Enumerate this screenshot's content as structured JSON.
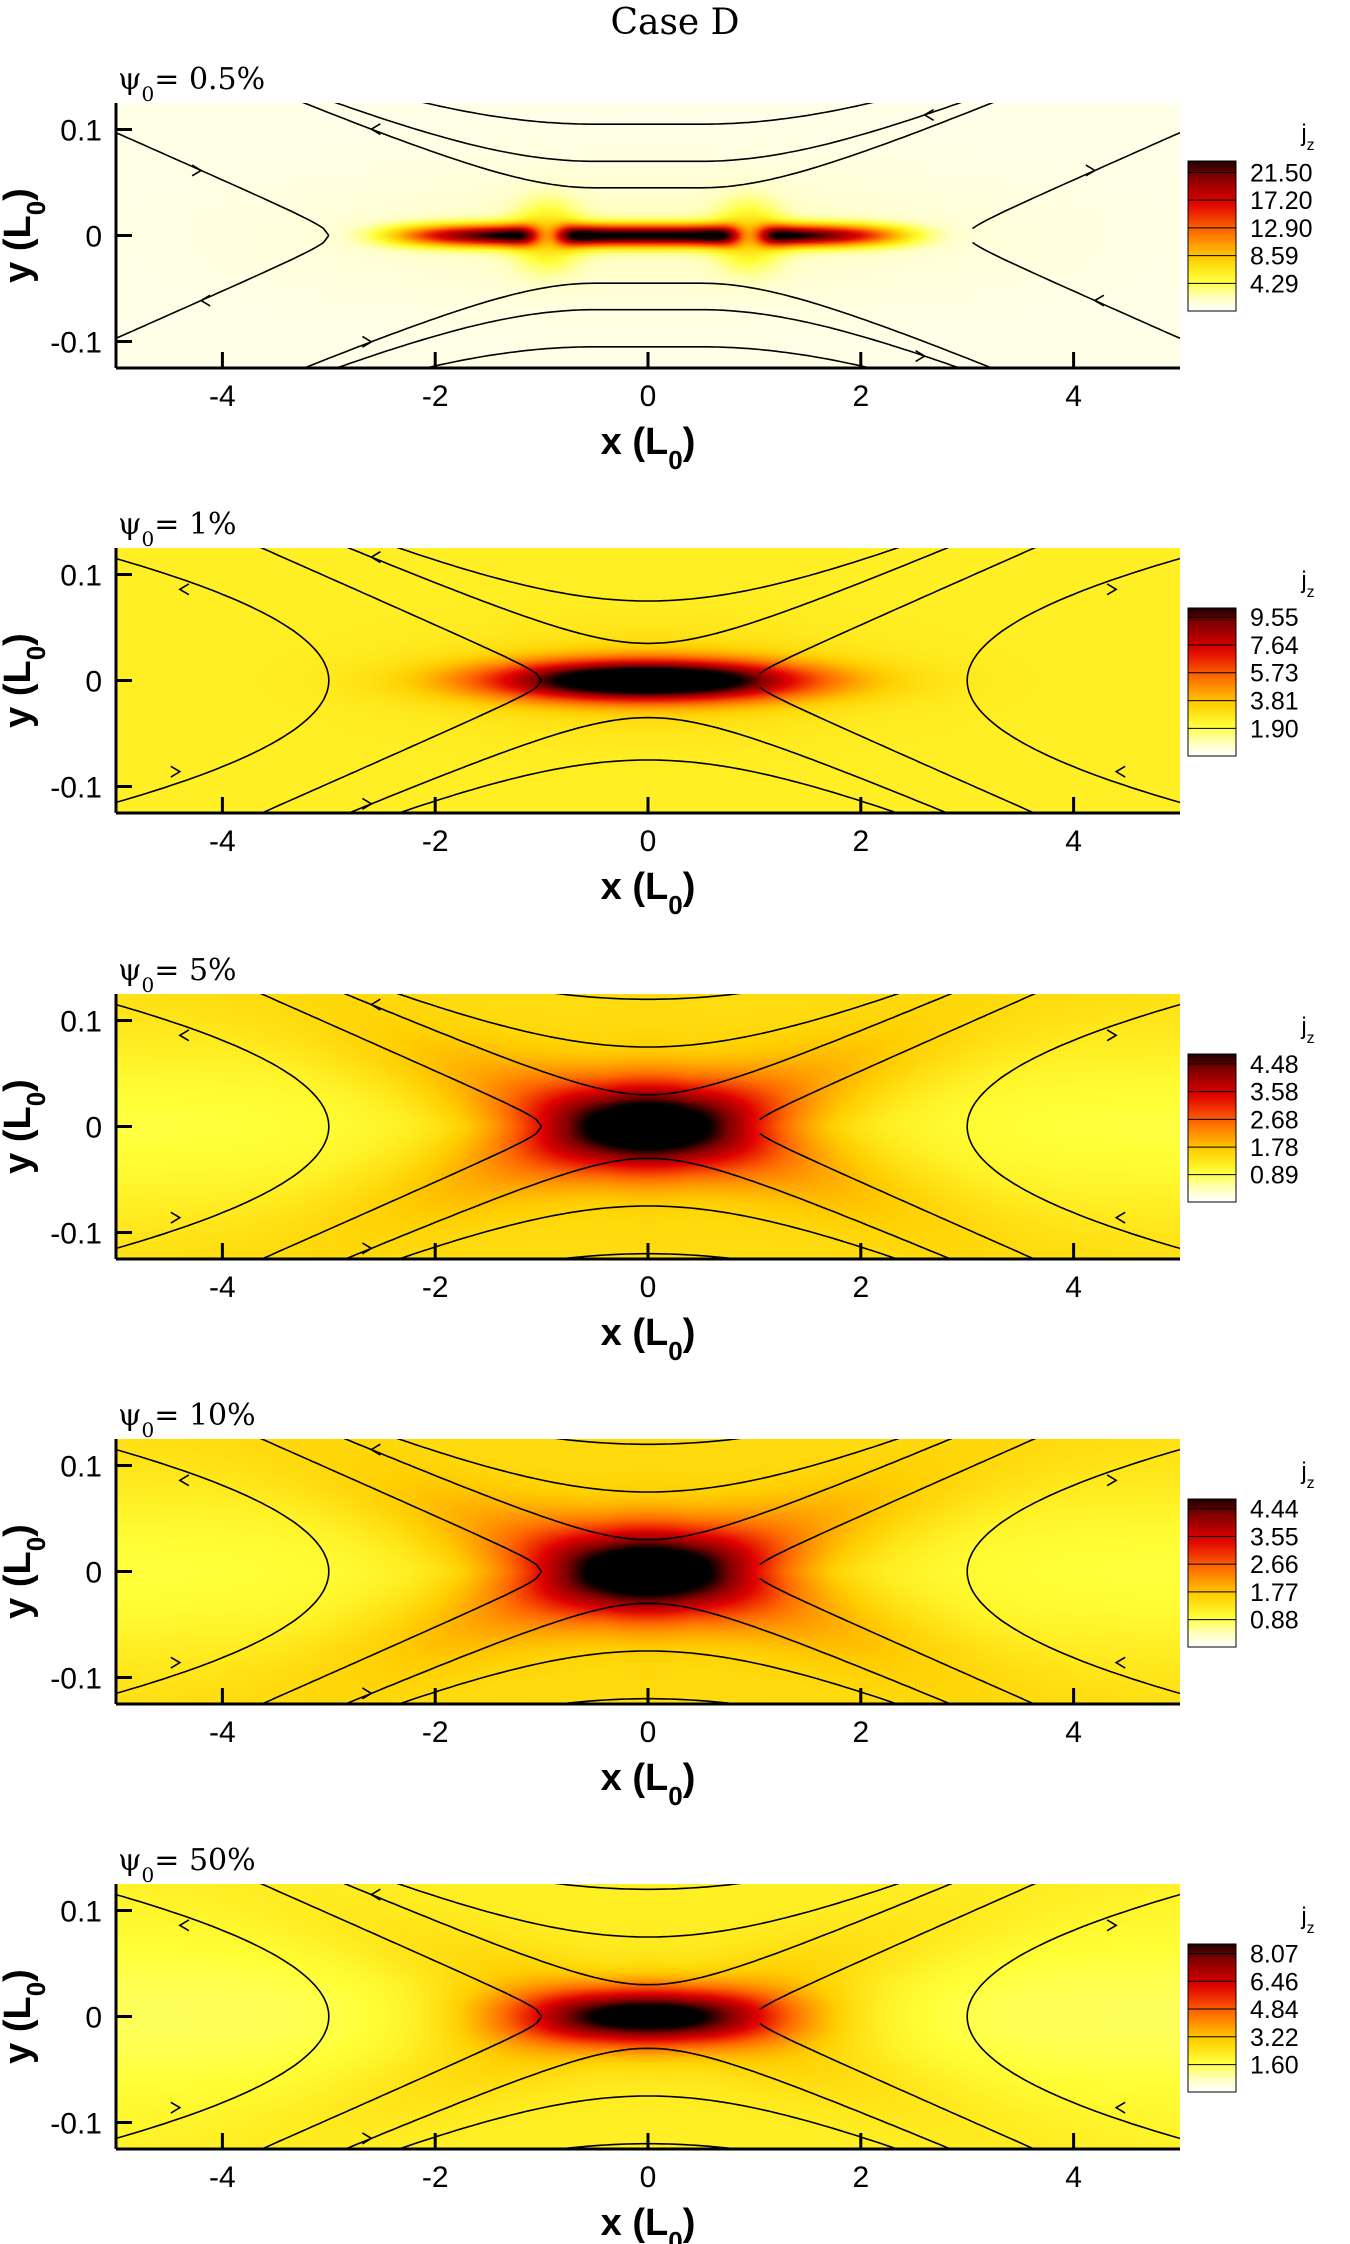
{
  "figure_title": "Case D",
  "colors": {
    "colormap": [
      "#ffffff",
      "#ffffc8",
      "#ffff37",
      "#ffcf00",
      "#ff6a00",
      "#e10000",
      "#800000",
      "#000000"
    ]
  },
  "chart_data": [
    {
      "type": "heatmap",
      "title": "ψ0= 0.5%",
      "label_main": "ψ",
      "label_sub": "0",
      "label_rest": "= 0.5%",
      "xlabel": "x (L0)",
      "xlabel_main": "x (L",
      "xlabel_sub": "0",
      "xlabel_end": ")",
      "ylabel_main": "y (L",
      "ylabel_sub": "0",
      "ylabel_end": ")",
      "xlim": [
        -5,
        5
      ],
      "ylim": [
        -0.125,
        0.125
      ],
      "xticks": [
        -4,
        -2,
        0,
        2,
        4
      ],
      "xtick_labels": [
        "-4",
        "-2",
        "0",
        "2",
        "4"
      ],
      "yticks": [
        -0.1,
        0,
        0.1
      ],
      "ytick_labels": [
        "-0.1",
        "0",
        "0.1"
      ],
      "colorbar_title": "j",
      "colorbar_title_sub": "z",
      "colorbar_levels": [
        4.29,
        8.59,
        12.9,
        17.2,
        21.5
      ],
      "colorbar_labels": [
        "4.29",
        "8.59",
        "12.90",
        "17.20",
        "21.50"
      ],
      "vmax": 24,
      "field": {
        "background": 0.8,
        "sheet_peak": 23,
        "sheet_halfwidth": 2.3,
        "sheet_thickness": 0.01,
        "center_hole": 0.55,
        "xpoint_offset": 0.95,
        "xpoint_level": 6,
        "xpoint_width": 0.3
      },
      "x_point": 3.0,
      "separatrix_offset": 0.5,
      "field_lines": [
        {
          "type": "sep"
        },
        {
          "type": "open",
          "c": 0.045
        },
        {
          "type": "open",
          "c": 0.07
        },
        {
          "type": "open",
          "c": 0.105
        }
      ]
    },
    {
      "type": "heatmap",
      "title": "ψ0= 1%",
      "label_main": "ψ",
      "label_sub": "0",
      "label_rest": "= 1%",
      "xlabel": "x (L0)",
      "xlabel_main": "x (L",
      "xlabel_sub": "0",
      "xlabel_end": ")",
      "ylabel_main": "y (L",
      "ylabel_sub": "0",
      "ylabel_end": ")",
      "xlim": [
        -5,
        5
      ],
      "ylim": [
        -0.125,
        0.125
      ],
      "xticks": [
        -4,
        -2,
        0,
        2,
        4
      ],
      "xtick_labels": [
        "-4",
        "-2",
        "0",
        "2",
        "4"
      ],
      "yticks": [
        -0.1,
        0,
        0.1
      ],
      "ytick_labels": [
        "-0.1",
        "0",
        "0.1"
      ],
      "colorbar_title": "j",
      "colorbar_title_sub": "z",
      "colorbar_levels": [
        1.9,
        3.81,
        5.73,
        7.64,
        9.55
      ],
      "colorbar_labels": [
        "1.90",
        "3.81",
        "5.73",
        "7.64",
        "9.55"
      ],
      "vmax": 10.5,
      "field": {
        "background": 2.6,
        "peak": 10.5,
        "cx": 1.4,
        "cy": 0.018
      },
      "x_point": 1.0,
      "separatrix_offset": 0.0,
      "field_lines": [
        {
          "type": "sep"
        },
        {
          "type": "open",
          "c": 0.035
        },
        {
          "type": "open",
          "c": 0.075
        },
        {
          "type": "closed",
          "c": 0.1
        }
      ]
    },
    {
      "type": "heatmap",
      "title": "ψ0= 5%",
      "label_main": "ψ",
      "label_sub": "0",
      "label_rest": "= 5%",
      "xlabel": "x (L0)",
      "xlabel_main": "x (L",
      "xlabel_sub": "0",
      "xlabel_end": ")",
      "ylabel_main": "y (L",
      "ylabel_sub": "0",
      "ylabel_end": ")",
      "xlim": [
        -5,
        5
      ],
      "ylim": [
        -0.125,
        0.125
      ],
      "xticks": [
        -4,
        -2,
        0,
        2,
        4
      ],
      "xtick_labels": [
        "-4",
        "-2",
        "0",
        "2",
        "4"
      ],
      "yticks": [
        -0.1,
        0,
        0.1
      ],
      "ytick_labels": [
        "-0.1",
        "0",
        "0.1"
      ],
      "colorbar_title": "j",
      "colorbar_title_sub": "z",
      "colorbar_levels": [
        0.89,
        1.78,
        2.68,
        3.58,
        4.48
      ],
      "colorbar_labels": [
        "0.89",
        "1.78",
        "2.68",
        "3.58",
        "4.48"
      ],
      "vmax": 4.95,
      "field": {
        "background": 1.5,
        "peak": 3.4,
        "cx": 1.0,
        "cy": 0.04,
        "xarm": 2.3,
        "ytrough": 1.1,
        "ymid_floor": 0.55
      },
      "x_point": 1.0,
      "separatrix_offset": 0.0,
      "field_lines": [
        {
          "type": "sep"
        },
        {
          "type": "open",
          "c": 0.03
        },
        {
          "type": "open",
          "c": 0.075
        },
        {
          "type": "open",
          "c": 0.12
        },
        {
          "type": "closed",
          "c": 0.06
        }
      ]
    },
    {
      "type": "heatmap",
      "title": "ψ0= 10%",
      "label_main": "ψ",
      "label_sub": "0",
      "label_rest": "= 10%",
      "xlabel": "x (L0)",
      "xlabel_main": "x (L",
      "xlabel_sub": "0",
      "xlabel_end": ")",
      "ylabel_main": "y (L",
      "ylabel_sub": "0",
      "ylabel_end": ")",
      "xlim": [
        -5,
        5
      ],
      "ylim": [
        -0.125,
        0.125
      ],
      "xticks": [
        -4,
        -2,
        0,
        2,
        4
      ],
      "xtick_labels": [
        "-4",
        "-2",
        "0",
        "2",
        "4"
      ],
      "yticks": [
        -0.1,
        0,
        0.1
      ],
      "ytick_labels": [
        "-0.1",
        "0",
        "0.1"
      ],
      "colorbar_title": "j",
      "colorbar_title_sub": "z",
      "colorbar_levels": [
        0.88,
        1.77,
        2.66,
        3.55,
        4.44
      ],
      "colorbar_labels": [
        "0.88",
        "1.77",
        "2.66",
        "3.55",
        "4.44"
      ],
      "vmax": 4.9,
      "field": {
        "background": 1.5,
        "peak": 3.4,
        "cx": 1.0,
        "cy": 0.04,
        "xarm": 2.3,
        "ytrough": 1.1,
        "ymid_floor": 0.55
      },
      "x_point": 1.0,
      "separatrix_offset": 0.0,
      "field_lines": [
        {
          "type": "sep"
        },
        {
          "type": "open",
          "c": 0.03
        },
        {
          "type": "open",
          "c": 0.075
        },
        {
          "type": "open",
          "c": 0.12
        },
        {
          "type": "closed",
          "c": 0.06
        }
      ]
    },
    {
      "type": "heatmap",
      "title": "ψ0= 50%",
      "label_main": "ψ",
      "label_sub": "0",
      "label_rest": "= 50%",
      "xlabel": "x (L0)",
      "xlabel_main": "x (L",
      "xlabel_sub": "0",
      "xlabel_end": ")",
      "ylabel_main": "y (L",
      "ylabel_sub": "0",
      "ylabel_end": ")",
      "xlim": [
        -5,
        5
      ],
      "ylim": [
        -0.125,
        0.125
      ],
      "xticks": [
        -4,
        -2,
        0,
        2,
        4
      ],
      "xtick_labels": [
        "-4",
        "-2",
        "0",
        "2",
        "4"
      ],
      "yticks": [
        -0.1,
        0,
        0.1
      ],
      "ytick_labels": [
        "-0.1",
        "0",
        "0.1"
      ],
      "colorbar_title": "j",
      "colorbar_title_sub": "z",
      "colorbar_levels": [
        1.6,
        3.22,
        4.84,
        6.46,
        8.07
      ],
      "colorbar_labels": [
        "1.60",
        "3.22",
        "4.84",
        "6.46",
        "8.07"
      ],
      "vmax": 8.9,
      "field": {
        "background": 2.2,
        "peak": 6.6,
        "cx": 1.25,
        "cy": 0.025,
        "xarm": 2.6,
        "ytrough": 1.2,
        "ymid_floor": 0.7
      },
      "x_point": 1.0,
      "separatrix_offset": 0.0,
      "field_lines": [
        {
          "type": "sep"
        },
        {
          "type": "open",
          "c": 0.03
        },
        {
          "type": "open",
          "c": 0.075
        },
        {
          "type": "open",
          "c": 0.12
        },
        {
          "type": "closed",
          "c": 0.06
        }
      ]
    }
  ]
}
